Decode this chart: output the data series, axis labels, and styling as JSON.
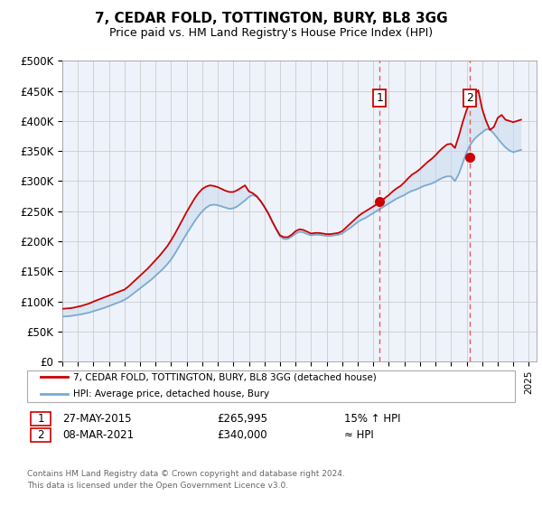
{
  "title": "7, CEDAR FOLD, TOTTINGTON, BURY, BL8 3GG",
  "subtitle": "Price paid vs. HM Land Registry's House Price Index (HPI)",
  "ylim": [
    0,
    500000
  ],
  "yticks": [
    0,
    50000,
    100000,
    150000,
    200000,
    250000,
    300000,
    350000,
    400000,
    450000,
    500000
  ],
  "ytick_labels": [
    "£0",
    "£50K",
    "£100K",
    "£150K",
    "£200K",
    "£250K",
    "£300K",
    "£350K",
    "£400K",
    "£450K",
    "£500K"
  ],
  "xlim_start": 1995.0,
  "xlim_end": 2025.5,
  "background_color": "#ffffff",
  "plot_bg_color": "#eef2fa",
  "grid_color": "#cccccc",
  "red_line_color": "#cc0000",
  "blue_line_color": "#7aaad0",
  "fill_color": "#c8d9ee",
  "marker1_x": 2015.4,
  "marker1_y": 265995,
  "marker2_x": 2021.18,
  "marker2_y": 340000,
  "vline_color": "#e06060",
  "marker_box_color": "#cc0000",
  "sale1_date": "27-MAY-2015",
  "sale1_price": "£265,995",
  "sale1_note": "15% ↑ HPI",
  "sale2_date": "08-MAR-2021",
  "sale2_price": "£340,000",
  "sale2_note": "≈ HPI",
  "legend_label_red": "7, CEDAR FOLD, TOTTINGTON, BURY, BL8 3GG (detached house)",
  "legend_label_blue": "HPI: Average price, detached house, Bury",
  "footer": "Contains HM Land Registry data © Crown copyright and database right 2024.\nThis data is licensed under the Open Government Licence v3.0.",
  "hpi_data_x": [
    1995.0,
    1995.25,
    1995.5,
    1995.75,
    1996.0,
    1996.25,
    1996.5,
    1996.75,
    1997.0,
    1997.25,
    1997.5,
    1997.75,
    1998.0,
    1998.25,
    1998.5,
    1998.75,
    1999.0,
    1999.25,
    1999.5,
    1999.75,
    2000.0,
    2000.25,
    2000.5,
    2000.75,
    2001.0,
    2001.25,
    2001.5,
    2001.75,
    2002.0,
    2002.25,
    2002.5,
    2002.75,
    2003.0,
    2003.25,
    2003.5,
    2003.75,
    2004.0,
    2004.25,
    2004.5,
    2004.75,
    2005.0,
    2005.25,
    2005.5,
    2005.75,
    2006.0,
    2006.25,
    2006.5,
    2006.75,
    2007.0,
    2007.25,
    2007.5,
    2007.75,
    2008.0,
    2008.25,
    2008.5,
    2008.75,
    2009.0,
    2009.25,
    2009.5,
    2009.75,
    2010.0,
    2010.25,
    2010.5,
    2010.75,
    2011.0,
    2011.25,
    2011.5,
    2011.75,
    2012.0,
    2012.25,
    2012.5,
    2012.75,
    2013.0,
    2013.25,
    2013.5,
    2013.75,
    2014.0,
    2014.25,
    2014.5,
    2014.75,
    2015.0,
    2015.25,
    2015.5,
    2015.75,
    2016.0,
    2016.25,
    2016.5,
    2016.75,
    2017.0,
    2017.25,
    2017.5,
    2017.75,
    2018.0,
    2018.25,
    2018.5,
    2018.75,
    2019.0,
    2019.25,
    2019.5,
    2019.75,
    2020.0,
    2020.25,
    2020.5,
    2020.75,
    2021.0,
    2021.25,
    2021.5,
    2021.75,
    2022.0,
    2022.25,
    2022.5,
    2022.75,
    2023.0,
    2023.25,
    2023.5,
    2023.75,
    2024.0,
    2024.25,
    2024.5
  ],
  "hpi_data_y": [
    75000,
    75500,
    76000,
    77000,
    78000,
    79000,
    80500,
    82000,
    84000,
    86000,
    88000,
    90000,
    92500,
    95000,
    97500,
    100000,
    103000,
    107000,
    112000,
    117000,
    122000,
    127000,
    132000,
    137000,
    143000,
    149000,
    155000,
    162000,
    170000,
    180000,
    191000,
    202000,
    213000,
    223000,
    233000,
    242000,
    250000,
    256000,
    260000,
    261000,
    260000,
    258000,
    256000,
    254000,
    255000,
    258000,
    263000,
    268000,
    274000,
    277000,
    274000,
    267000,
    258000,
    247000,
    233000,
    220000,
    208000,
    204000,
    204000,
    208000,
    213000,
    216000,
    215000,
    212000,
    210000,
    211000,
    211000,
    210000,
    209000,
    209000,
    210000,
    211000,
    213000,
    218000,
    222000,
    227000,
    232000,
    236000,
    239000,
    243000,
    247000,
    251000,
    255000,
    259000,
    263000,
    267000,
    271000,
    274000,
    277000,
    281000,
    284000,
    286000,
    289000,
    292000,
    294000,
    296000,
    299000,
    303000,
    306000,
    308000,
    308000,
    300000,
    312000,
    330000,
    348000,
    361000,
    370000,
    376000,
    381000,
    386000,
    386000,
    379000,
    371000,
    363000,
    356000,
    351000,
    348000,
    350000,
    352000
  ],
  "red_data_x": [
    1995.0,
    1995.25,
    1995.5,
    1995.75,
    1996.0,
    1996.25,
    1996.5,
    1996.75,
    1997.0,
    1997.25,
    1997.5,
    1997.75,
    1998.0,
    1998.25,
    1998.5,
    1998.75,
    1999.0,
    1999.25,
    1999.5,
    1999.75,
    2000.0,
    2000.25,
    2000.5,
    2000.75,
    2001.0,
    2001.25,
    2001.5,
    2001.75,
    2002.0,
    2002.25,
    2002.5,
    2002.75,
    2003.0,
    2003.25,
    2003.5,
    2003.75,
    2004.0,
    2004.25,
    2004.5,
    2004.75,
    2005.0,
    2005.25,
    2005.5,
    2005.75,
    2006.0,
    2006.25,
    2006.5,
    2006.75,
    2007.0,
    2007.25,
    2007.5,
    2007.75,
    2008.0,
    2008.25,
    2008.5,
    2008.75,
    2009.0,
    2009.25,
    2009.5,
    2009.75,
    2010.0,
    2010.25,
    2010.5,
    2010.75,
    2011.0,
    2011.25,
    2011.5,
    2011.75,
    2012.0,
    2012.25,
    2012.5,
    2012.75,
    2013.0,
    2013.25,
    2013.5,
    2013.75,
    2014.0,
    2014.25,
    2014.5,
    2014.75,
    2015.0,
    2015.25,
    2015.5,
    2015.75,
    2016.0,
    2016.25,
    2016.5,
    2016.75,
    2017.0,
    2017.25,
    2017.5,
    2017.75,
    2018.0,
    2018.25,
    2018.5,
    2018.75,
    2019.0,
    2019.25,
    2019.5,
    2019.75,
    2020.0,
    2020.25,
    2020.5,
    2020.75,
    2021.0,
    2021.25,
    2021.5,
    2021.75,
    2022.0,
    2022.25,
    2022.5,
    2022.75,
    2023.0,
    2023.25,
    2023.5,
    2023.75,
    2024.0,
    2024.25,
    2024.5
  ],
  "red_data_y": [
    88000,
    88500,
    89000,
    90000,
    91500,
    93000,
    95000,
    97000,
    100000,
    102500,
    105000,
    107500,
    110000,
    112500,
    115000,
    117500,
    120000,
    125000,
    131000,
    137000,
    143000,
    149000,
    155000,
    162000,
    169000,
    176000,
    184000,
    192000,
    202000,
    213000,
    225000,
    237000,
    249000,
    260000,
    271000,
    280000,
    287000,
    291000,
    293000,
    292000,
    290000,
    287000,
    284000,
    282000,
    282000,
    285000,
    289000,
    293000,
    283000,
    280000,
    275000,
    267000,
    257000,
    246000,
    233000,
    221000,
    210000,
    207000,
    207000,
    211000,
    217000,
    220000,
    219000,
    216000,
    213000,
    214000,
    214000,
    213000,
    212000,
    212000,
    213000,
    214000,
    217000,
    223000,
    229000,
    235000,
    241000,
    246000,
    250000,
    254000,
    258000,
    262000,
    267000,
    272000,
    277000,
    283000,
    288000,
    292000,
    298000,
    305000,
    311000,
    315000,
    320000,
    326000,
    332000,
    337000,
    343000,
    350000,
    356000,
    361000,
    362000,
    355000,
    375000,
    398000,
    418000,
    433000,
    444000,
    451000,
    420000,
    400000,
    385000,
    390000,
    405000,
    410000,
    402000,
    400000,
    398000,
    400000,
    402000
  ]
}
